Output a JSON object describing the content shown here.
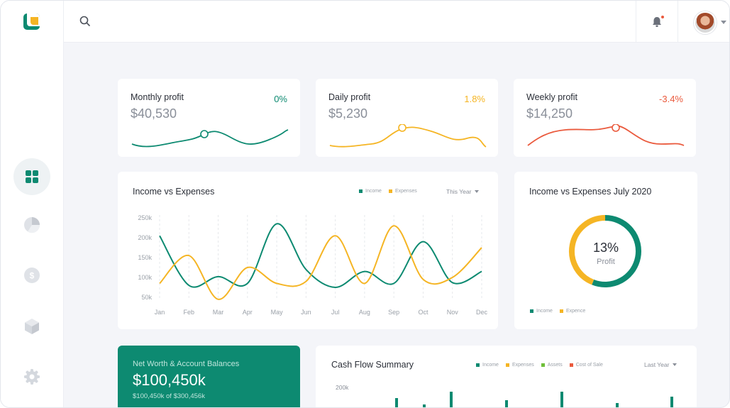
{
  "colors": {
    "teal": "#0d8a71",
    "yellow": "#f5b524",
    "orange": "#ea5a3d",
    "text": "#2b2f38",
    "muted": "#8a8f99"
  },
  "sidebar": {
    "items": [
      {
        "name": "dashboard",
        "icon": "grid-icon",
        "active": true
      },
      {
        "name": "reports",
        "icon": "pie-chart-icon",
        "active": false
      },
      {
        "name": "finance",
        "icon": "dollar-icon",
        "active": false
      },
      {
        "name": "products",
        "icon": "box-icon",
        "active": false
      },
      {
        "name": "settings",
        "icon": "gear-icon",
        "active": false
      }
    ]
  },
  "topbar": {
    "search_icon": "search-icon",
    "bell_icon": "bell-icon",
    "has_notification": true
  },
  "stats": [
    {
      "title": "Monthly profit",
      "value": "$40,530",
      "change": "0%",
      "color": "#0d8a71"
    },
    {
      "title": "Daily profit",
      "value": "$5,230",
      "change": "1.8%",
      "color": "#f5b524"
    },
    {
      "title": "Weekly profit",
      "value": "$14,250",
      "change": "-3.4%",
      "color": "#ea5a3d"
    }
  ],
  "income_chart": {
    "title": "Income vs Expenses",
    "legend": [
      "Income",
      "Expenses"
    ],
    "period": "This Year"
  },
  "donut": {
    "title": "Income vs Expenses July 2020",
    "value": "13%",
    "label": "Profit",
    "legend": [
      "Income",
      "Expence"
    ]
  },
  "networth": {
    "title": "Net Worth & Account Balances",
    "value": "$100,450k",
    "sub": "$100,450k of $300,456k"
  },
  "cashflow": {
    "title": "Cash Flow Summary",
    "legend": [
      "Income",
      "Expenses",
      "Assets",
      "Cost of Sale"
    ],
    "period": "Last Year",
    "ytick": "200k"
  },
  "chart_data": [
    {
      "type": "line",
      "title": "Income vs Expenses",
      "categories": [
        "Jan",
        "Feb",
        "Mar",
        "Apr",
        "May",
        "Jun",
        "Jul",
        "Aug",
        "Sep",
        "Oct",
        "Nov",
        "Dec"
      ],
      "yticks": [
        "250k",
        "200k",
        "150k",
        "100k",
        "50k"
      ],
      "ylim": [
        50,
        250
      ],
      "series": [
        {
          "name": "Income",
          "values": [
            205,
            80,
            102,
            85,
            235,
            120,
            75,
            115,
            85,
            190,
            87,
            115
          ]
        },
        {
          "name": "Expenses",
          "values": [
            85,
            155,
            45,
            125,
            85,
            90,
            205,
            85,
            230,
            95,
            100,
            175
          ]
        }
      ]
    },
    {
      "type": "pie",
      "title": "Income vs Expenses July 2020",
      "series": [
        {
          "name": "Income",
          "values": [
            56
          ]
        },
        {
          "name": "Expence",
          "values": [
            44
          ]
        }
      ]
    }
  ]
}
